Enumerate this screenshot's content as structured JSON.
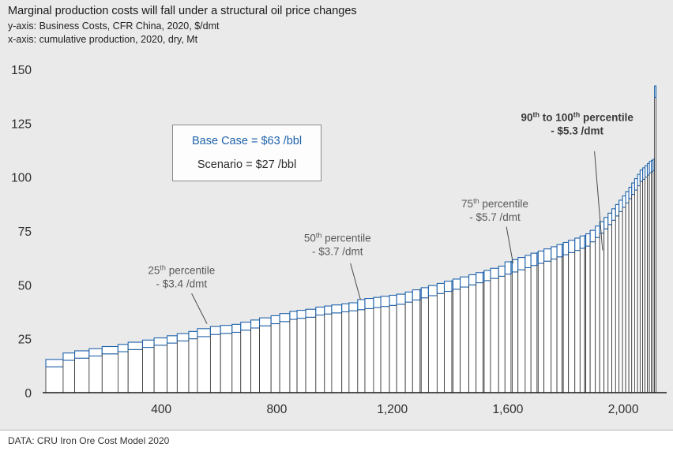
{
  "header": {
    "title": "Marginal production costs will fall under a structural oil price changes",
    "subtitle_y": "y-axis: Business Costs, CFR China, 2020, $/dmt",
    "subtitle_x": "x-axis: cumulative production, 2020, dry, Mt"
  },
  "legend": {
    "base_case": "Base Case = $63 /bbl",
    "scenario": "Scenario = $27 /bbl"
  },
  "footer": {
    "source": "DATA: CRU Iron Ore Cost Model 2020"
  },
  "chart_data": {
    "type": "bar",
    "subtype": "sorted-cost-curve-step-chart",
    "title": "Marginal production costs will fall under a structural oil price changes",
    "xlabel": "cumulative production, 2020, dry, Mt",
    "ylabel": "Business Costs, CFR China, 2020, $/dmt",
    "x_max": 2150,
    "y_max": 150,
    "yticks": [
      0,
      25,
      50,
      75,
      100,
      125,
      150
    ],
    "xticks": [
      {
        "value": 400,
        "label": "400"
      },
      {
        "value": 800,
        "label": "800"
      },
      {
        "value": 1200,
        "label": "1,200"
      },
      {
        "value": 1600,
        "label": "1,600"
      },
      {
        "value": 2000,
        "label": "2,000"
      }
    ],
    "colors": {
      "base_case": "#1f62ab",
      "scenario": "#2b2b2b",
      "background": "#eaeaea",
      "annotation": "#595959",
      "annotation_bold": "#3a3a3a"
    },
    "series": [
      {
        "name": "Base Case = $63 /bbl",
        "role": "base_case"
      },
      {
        "name": "Scenario = $27 /bbl",
        "role": "scenario"
      }
    ],
    "percentile_deltas": {
      "25th": "- $3.4 /dmt",
      "50th": "- $3.7 /dmt",
      "75th": "- $5.7 /dmt",
      "90th_to_100th": "- $5.3 /dmt"
    },
    "segments_format": [
      "width_Mt",
      "scenario_cost_usd_per_dmt",
      "base_case_cost_usd_per_dmt"
    ],
    "segments": [
      [
        60,
        12,
        15.4
      ],
      [
        40,
        15,
        18.4
      ],
      [
        50,
        16,
        19.4
      ],
      [
        45,
        17,
        20.4
      ],
      [
        55,
        18,
        21.4
      ],
      [
        35,
        19,
        22.4
      ],
      [
        50,
        20,
        23.4
      ],
      [
        40,
        21,
        24.4
      ],
      [
        45,
        22,
        25.4
      ],
      [
        35,
        23,
        26.4
      ],
      [
        40,
        24,
        27.4
      ],
      [
        30,
        25,
        28.4
      ],
      [
        45,
        26,
        29.7
      ],
      [
        35,
        27,
        30.7
      ],
      [
        40,
        27.5,
        31.2
      ],
      [
        30,
        28,
        31.7
      ],
      [
        35,
        29,
        32.7
      ],
      [
        30,
        30,
        33.7
      ],
      [
        40,
        31,
        34.7
      ],
      [
        30,
        32,
        35.7
      ],
      [
        35,
        33,
        36.7
      ],
      [
        25,
        34,
        37.7
      ],
      [
        30,
        34.5,
        38.2
      ],
      [
        35,
        35,
        38.7
      ],
      [
        30,
        36,
        39.7
      ],
      [
        25,
        36.5,
        40.2
      ],
      [
        35,
        37,
        40.7
      ],
      [
        25,
        37.5,
        41.2
      ],
      [
        30,
        38,
        41.7
      ],
      [
        25,
        38.5,
        43.2
      ],
      [
        30,
        39,
        43.7
      ],
      [
        25,
        39.5,
        44.2
      ],
      [
        30,
        40,
        44.7
      ],
      [
        25,
        40.5,
        45.2
      ],
      [
        30,
        41,
        45.7
      ],
      [
        25,
        42,
        46.7
      ],
      [
        26,
        43,
        47.7
      ],
      [
        4,
        43.2,
        47.9
      ],
      [
        25,
        44,
        48.7
      ],
      [
        30,
        45,
        49.7
      ],
      [
        25,
        46,
        50.7
      ],
      [
        26,
        47,
        51.7
      ],
      [
        4,
        47.2,
        51.9
      ],
      [
        25,
        48,
        52.7
      ],
      [
        30,
        49,
        53.7
      ],
      [
        25,
        50,
        54.7
      ],
      [
        24,
        51,
        55.7
      ],
      [
        4,
        51.2,
        55.9
      ],
      [
        22,
        52,
        56.7
      ],
      [
        28,
        53,
        57.7
      ],
      [
        22,
        54,
        58.7
      ],
      [
        21,
        55,
        60.7
      ],
      [
        4,
        55.2,
        60.9
      ],
      [
        20,
        56,
        61.7
      ],
      [
        25,
        57,
        62.7
      ],
      [
        20,
        58,
        63.7
      ],
      [
        21,
        59,
        64.7
      ],
      [
        4,
        59.2,
        64.9
      ],
      [
        20,
        60,
        65.7
      ],
      [
        25,
        61,
        66.7
      ],
      [
        20,
        62,
        67.7
      ],
      [
        18,
        63,
        68.7
      ],
      [
        4,
        63.2,
        68.9
      ],
      [
        18,
        64,
        69.7
      ],
      [
        22,
        65,
        70.7
      ],
      [
        18,
        66,
        71.7
      ],
      [
        16,
        67,
        72.7
      ],
      [
        4,
        67.2,
        72.9
      ],
      [
        15,
        68,
        73.7
      ],
      [
        18,
        70,
        75.3
      ],
      [
        15,
        72,
        77.3
      ],
      [
        15,
        74,
        79.3
      ],
      [
        14,
        76,
        81.3
      ],
      [
        13,
        78,
        83.3
      ],
      [
        13,
        80,
        85.3
      ],
      [
        12,
        82,
        87.3
      ],
      [
        12,
        84,
        89.3
      ],
      [
        11,
        86,
        91.3
      ],
      [
        11,
        88,
        93.3
      ],
      [
        10,
        90,
        95.3
      ],
      [
        10,
        92,
        97.3
      ],
      [
        10,
        94,
        99.3
      ],
      [
        9,
        96,
        101.3
      ],
      [
        9,
        98,
        103.3
      ],
      [
        8,
        99,
        104.3
      ],
      [
        8,
        100,
        105.3
      ],
      [
        7,
        101,
        106.3
      ],
      [
        7,
        102,
        107.3
      ],
      [
        6,
        102.5,
        107.8
      ],
      [
        5,
        103,
        108.3
      ],
      [
        5,
        137,
        142.3
      ]
    ],
    "annotations": [
      {
        "runs": [
          [
            "25"
          ],
          [
            "th",
            "sup"
          ],
          [
            " percentile"
          ]
        ],
        "line2": "- $3.4 /dmt",
        "bold": false,
        "cx": 470,
        "cy": 55,
        "lx1": 505,
        "ly1": 46,
        "lx2": 558,
        "ly2": 32
      },
      {
        "runs": [
          [
            "50"
          ],
          [
            "th",
            "sup"
          ],
          [
            " percentile"
          ]
        ],
        "line2": "- $3.7 /dmt",
        "bold": false,
        "cx": 1010,
        "cy": 70,
        "lx1": 1055,
        "ly1": 60,
        "lx2": 1090,
        "ly2": 43
      },
      {
        "runs": [
          [
            "75"
          ],
          [
            "th",
            "sup"
          ],
          [
            " percentile"
          ]
        ],
        "line2": "- $5.7 /dmt",
        "bold": false,
        "cx": 1555,
        "cy": 86,
        "lx1": 1595,
        "ly1": 77,
        "lx2": 1618,
        "ly2": 60
      },
      {
        "runs": [
          [
            "90"
          ],
          [
            "th",
            "sup"
          ],
          [
            " to 100"
          ],
          [
            "th",
            "sup"
          ],
          [
            " percentile"
          ]
        ],
        "line2": "- $5.3 /dmt",
        "bold": true,
        "cx": 1840,
        "cy": 126,
        "lx1": 1900,
        "ly1": 112,
        "lx2": 1928,
        "ly2": 66
      }
    ]
  }
}
